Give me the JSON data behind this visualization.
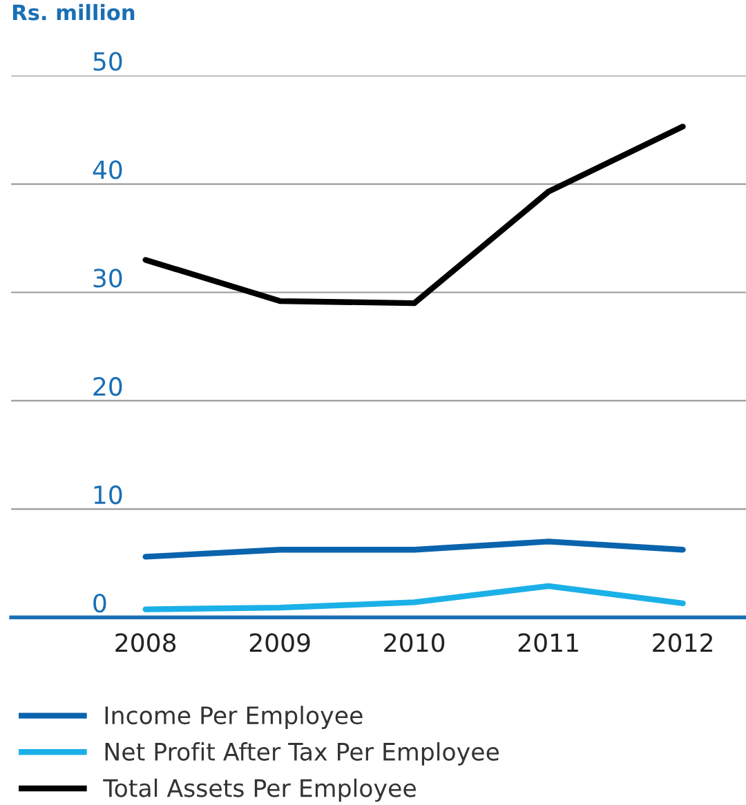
{
  "chart_data": {
    "type": "line",
    "ylabel": "Rs. million",
    "categories": [
      "2008",
      "2009",
      "2010",
      "2011",
      "2012"
    ],
    "series": [
      {
        "name": "Income Per Employee",
        "color": "#0a64ad",
        "values": [
          5.6,
          6.25,
          6.25,
          7.0,
          6.25
        ]
      },
      {
        "name": "Net Profit After Tax Per Employee",
        "color": "#1bb0e8",
        "values": [
          0.75,
          0.9,
          1.4,
          2.9,
          1.3
        ]
      },
      {
        "name": "Total Assets Per Employee",
        "color": "#000000",
        "values": [
          33.0,
          29.2,
          29.0,
          39.3,
          45.3
        ]
      }
    ],
    "ylim": [
      0,
      50
    ],
    "yticks": [
      0,
      10,
      20,
      30,
      40,
      50
    ],
    "grid": "y",
    "legend": "bottom",
    "marker": "none",
    "line_style": "solid"
  }
}
